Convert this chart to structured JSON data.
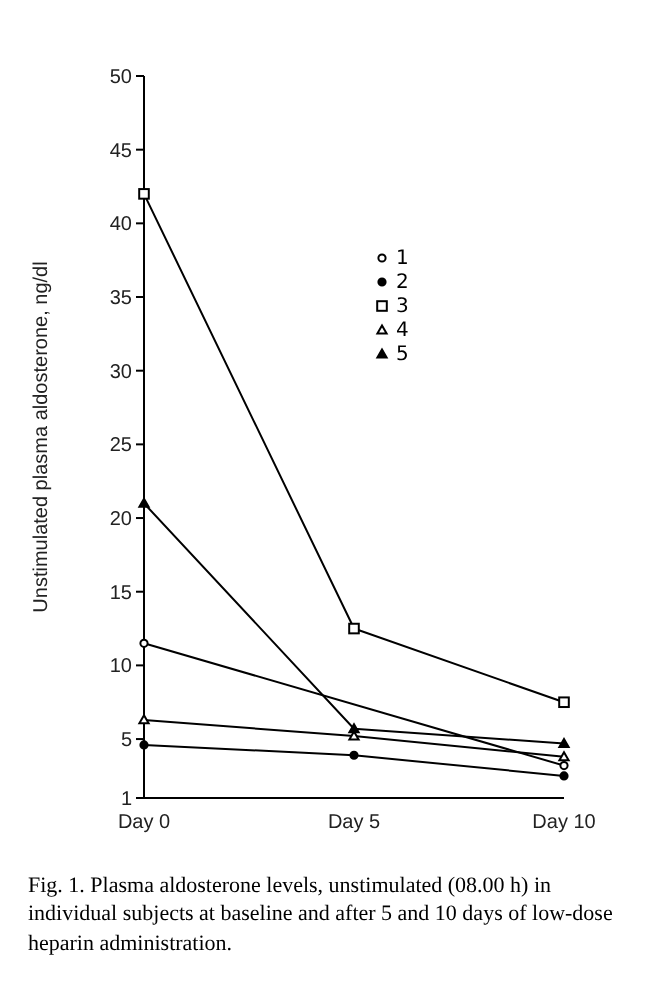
{
  "chart_data": {
    "type": "line",
    "ylabel": "Unstimulated plasma aldosterone, ng/dl",
    "categories": [
      "Day 0",
      "Day 5",
      "Day 10"
    ],
    "series": [
      {
        "name": "1",
        "color": "#000000",
        "marker": "circle",
        "values": [
          11.5,
          null,
          3.2
        ]
      },
      {
        "name": "2",
        "color": "#000000",
        "marker": "circle",
        "values": [
          4.6,
          3.9,
          2.5
        ]
      },
      {
        "name": "3",
        "color": "#000000",
        "marker": "square",
        "values": [
          42,
          12.5,
          7.5
        ]
      },
      {
        "name": "4",
        "color": "#000000",
        "marker": "triangle",
        "values": [
          6.3,
          5.2,
          3.8
        ]
      },
      {
        "name": "5",
        "color": "#000000",
        "marker": "triangle",
        "values": [
          21,
          5.7,
          4.7
        ]
      }
    ],
    "ylim": [
      1,
      50
    ],
    "yticks": [
      1,
      5,
      10,
      15,
      20,
      25,
      30,
      35,
      40,
      45,
      50
    ],
    "grid": false,
    "legend": "top right",
    "annotations": [
      "Fig. 1. Plasma aldosterone levels, unstimulated (08.00 h) in individual subjects at baseline and after 5 and 10 days of low-dose heparin administration."
    ]
  }
}
